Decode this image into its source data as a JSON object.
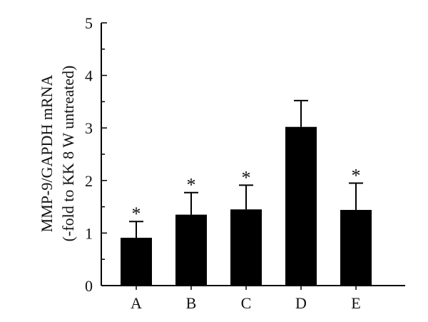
{
  "chart_data": {
    "type": "bar",
    "categories": [
      "A",
      "B",
      "C",
      "D",
      "E"
    ],
    "values": [
      0.91,
      1.35,
      1.45,
      3.02,
      1.44
    ],
    "errors": [
      0.31,
      0.42,
      0.46,
      0.5,
      0.51
    ],
    "significance": [
      "*",
      "*",
      "*",
      "",
      "*"
    ],
    "ylabel_line1": "MMP-9/GAPDH mRNA",
    "ylabel_line2": "(-fold to KK 8 W untreated)",
    "ylim": [
      0,
      5
    ],
    "yticks": [
      "0",
      "1",
      "2",
      "3",
      "4",
      "5"
    ],
    "bar_color": "#000000",
    "grid": false
  }
}
